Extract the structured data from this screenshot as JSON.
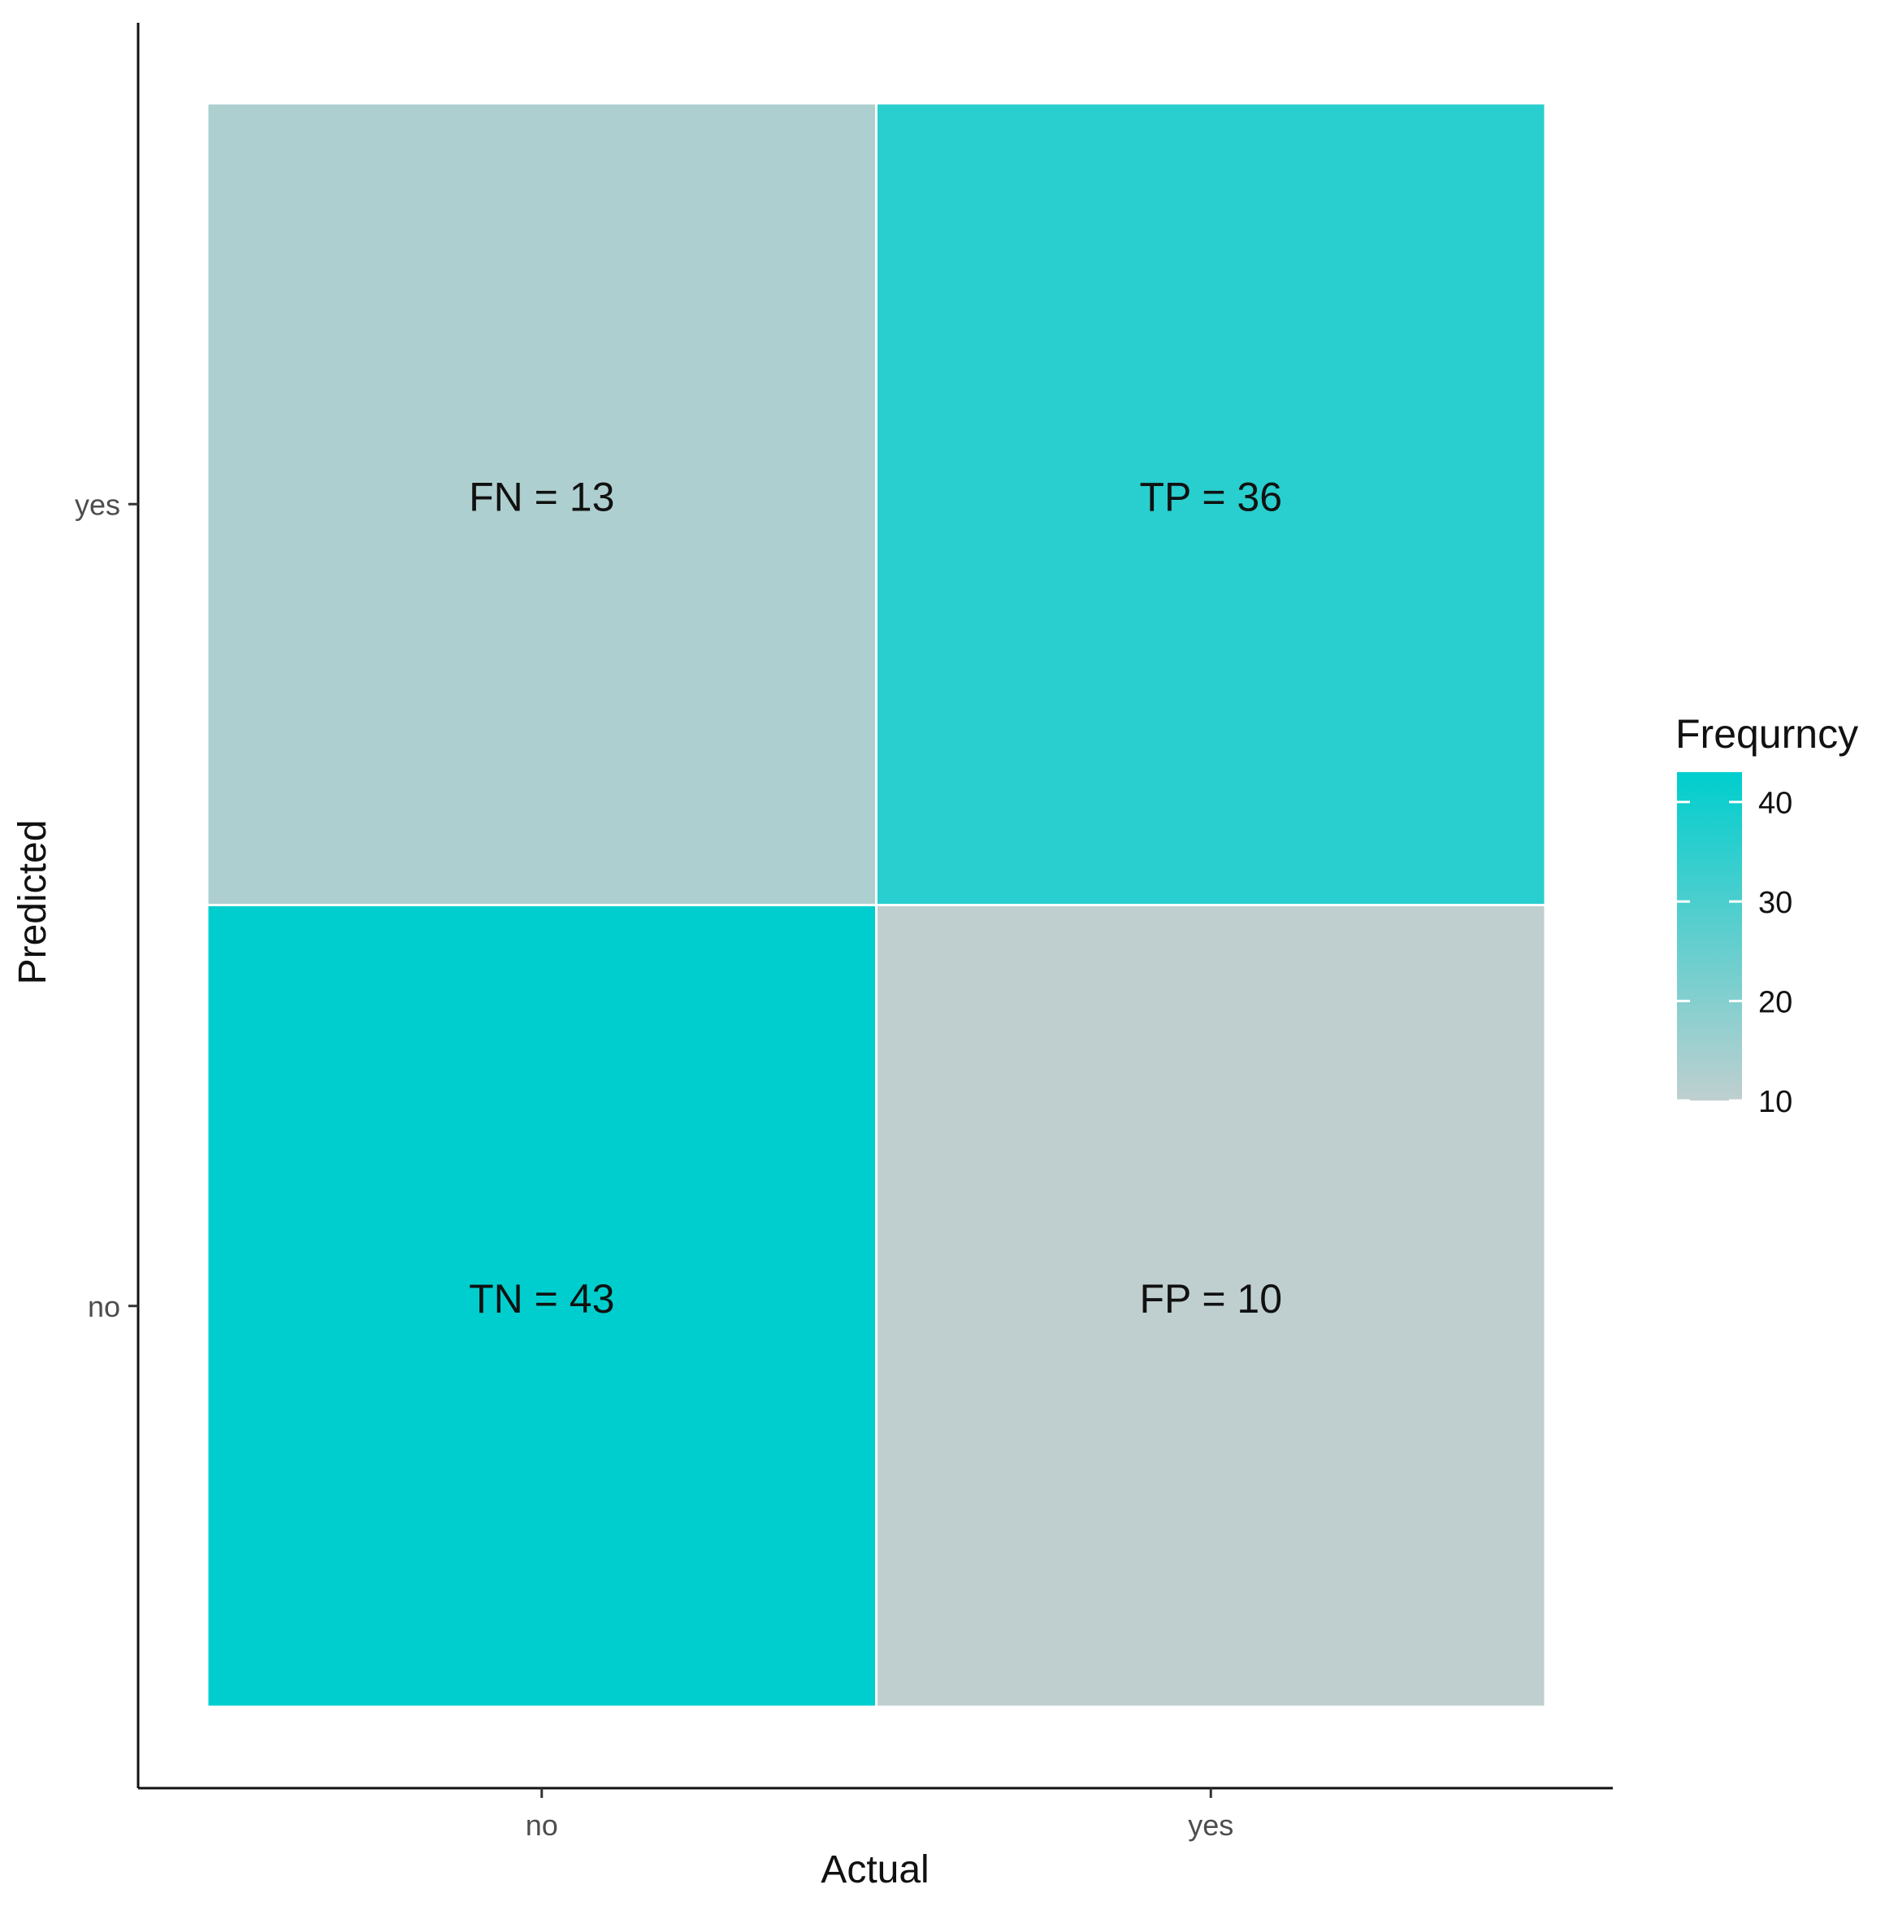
{
  "chart_data": {
    "type": "heatmap",
    "xlabel": "Actual",
    "ylabel": "Predicted",
    "x_categories": [
      "no",
      "yes"
    ],
    "y_categories": [
      "no",
      "yes"
    ],
    "cells": [
      {
        "actual": "no",
        "predicted": "yes",
        "label": "FN = 13",
        "value": 13
      },
      {
        "actual": "yes",
        "predicted": "yes",
        "label": "TP = 36",
        "value": 36
      },
      {
        "actual": "no",
        "predicted": "no",
        "label": "TN = 43",
        "value": 43
      },
      {
        "actual": "yes",
        "predicted": "no",
        "label": "FP = 10",
        "value": 10
      }
    ],
    "legend": {
      "title": "Frequrncy",
      "range": [
        10,
        43
      ],
      "ticks": [
        10,
        20,
        30,
        40
      ],
      "low_color": "#bfcfcf",
      "high_color": "#00cece"
    },
    "grid": false,
    "legend_position": "right"
  }
}
